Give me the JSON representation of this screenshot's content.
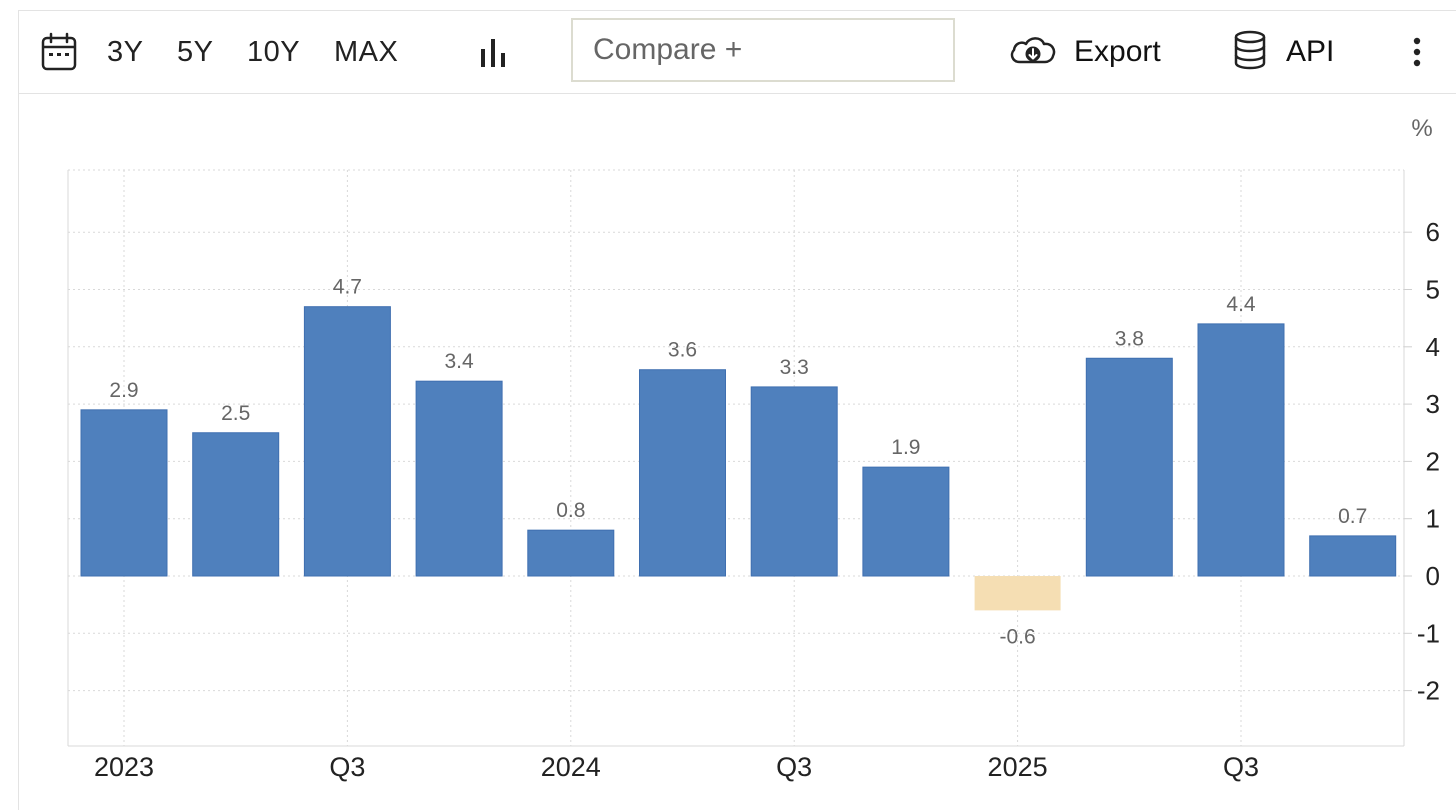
{
  "toolbar": {
    "ranges": [
      "3Y",
      "5Y",
      "10Y",
      "MAX"
    ],
    "compare_placeholder": "Compare +",
    "export_label": "Export",
    "api_label": "API"
  },
  "chart_data": {
    "type": "bar",
    "unit_label": "%",
    "categories": [
      "2023 Q1",
      "2023 Q2",
      "2023 Q3",
      "2023 Q4",
      "2024 Q1",
      "2024 Q2",
      "2024 Q3",
      "2024 Q4",
      "2025 Q1",
      "2025 Q2",
      "2025 Q3",
      "2025 Q4"
    ],
    "values": [
      2.9,
      2.5,
      4.7,
      3.4,
      0.8,
      3.6,
      3.3,
      1.9,
      -0.6,
      3.8,
      4.4,
      0.7
    ],
    "data_labels": [
      "2.9",
      "2.5",
      "4.7",
      "3.4",
      "0.8",
      "3.6",
      "3.3",
      "1.9",
      "-0.6",
      "3.8",
      "4.4",
      "0.7"
    ],
    "x_tick_labels": [
      "2023",
      "Q3",
      "2024",
      "Q3",
      "2025",
      "Q3"
    ],
    "x_tick_index": [
      0,
      2,
      4,
      6,
      8,
      10
    ],
    "y_ticks": [
      -2,
      -1,
      0,
      1,
      2,
      3,
      4,
      5,
      6
    ],
    "y_tick_labels": [
      "-2",
      "-1",
      "0",
      "1",
      "2",
      "3",
      "4",
      "5",
      "6"
    ],
    "ylim": [
      -3,
      7
    ],
    "grid": true,
    "y_axis_side": "right",
    "colors": {
      "positive": "#4f80bd",
      "negative": "#f5deb3",
      "label": "#666666",
      "grid": "#d9d9d9",
      "tick": "#222222"
    }
  }
}
